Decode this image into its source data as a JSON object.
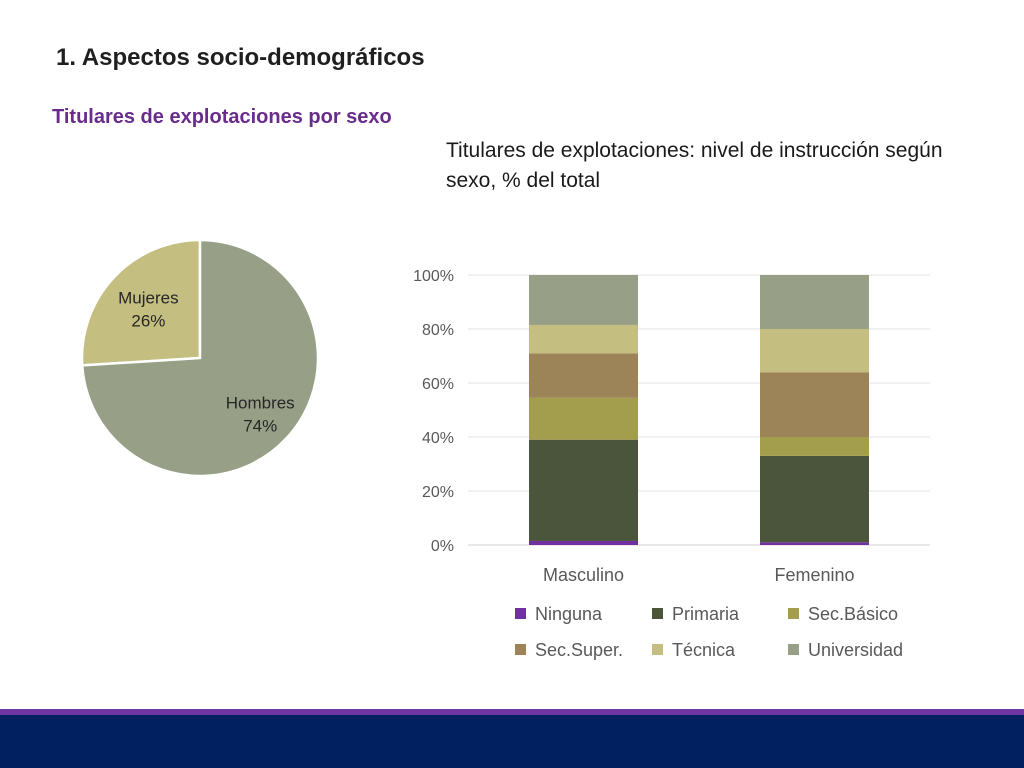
{
  "slide": {
    "title": "1. Aspectos socio-demográficos",
    "subtitle": "Titulares de explotaciones por sexo"
  },
  "colors": {
    "footer_accent": "#6f35a0",
    "footer_band": "#002060"
  },
  "chart_data": [
    {
      "type": "pie",
      "title": "",
      "slices": [
        {
          "name": "Mujeres",
          "value": 26,
          "label": "26%",
          "color": "#c5be81"
        },
        {
          "name": "Hombres",
          "value": 74,
          "label": "74%",
          "color": "#97a087"
        }
      ]
    },
    {
      "type": "bar",
      "stacked": true,
      "title": "Titulares de explotaciones: nivel de instrucción según sexo, % del total",
      "categories": [
        "Masculino",
        "Femenino"
      ],
      "ylim": [
        0,
        100
      ],
      "yticks": [
        "0%",
        "20%",
        "40%",
        "60%",
        "80%",
        "100%"
      ],
      "grid": true,
      "legend_position": "bottom",
      "series": [
        {
          "name": "Ninguna",
          "color": "#7030a0",
          "values": [
            1.5,
            1
          ]
        },
        {
          "name": "Primaria",
          "color": "#4b553c",
          "values": [
            37.5,
            32
          ]
        },
        {
          "name": "Sec.Básico",
          "color": "#a39e4e",
          "values": [
            15.5,
            7
          ]
        },
        {
          "name": "Sec.Super.",
          "color": "#9c8358",
          "values": [
            16.5,
            24
          ]
        },
        {
          "name": "Técnica",
          "color": "#c5be81",
          "values": [
            10.5,
            16
          ]
        },
        {
          "name": "Universidad",
          "color": "#97a087",
          "values": [
            18.5,
            20
          ]
        }
      ]
    }
  ]
}
